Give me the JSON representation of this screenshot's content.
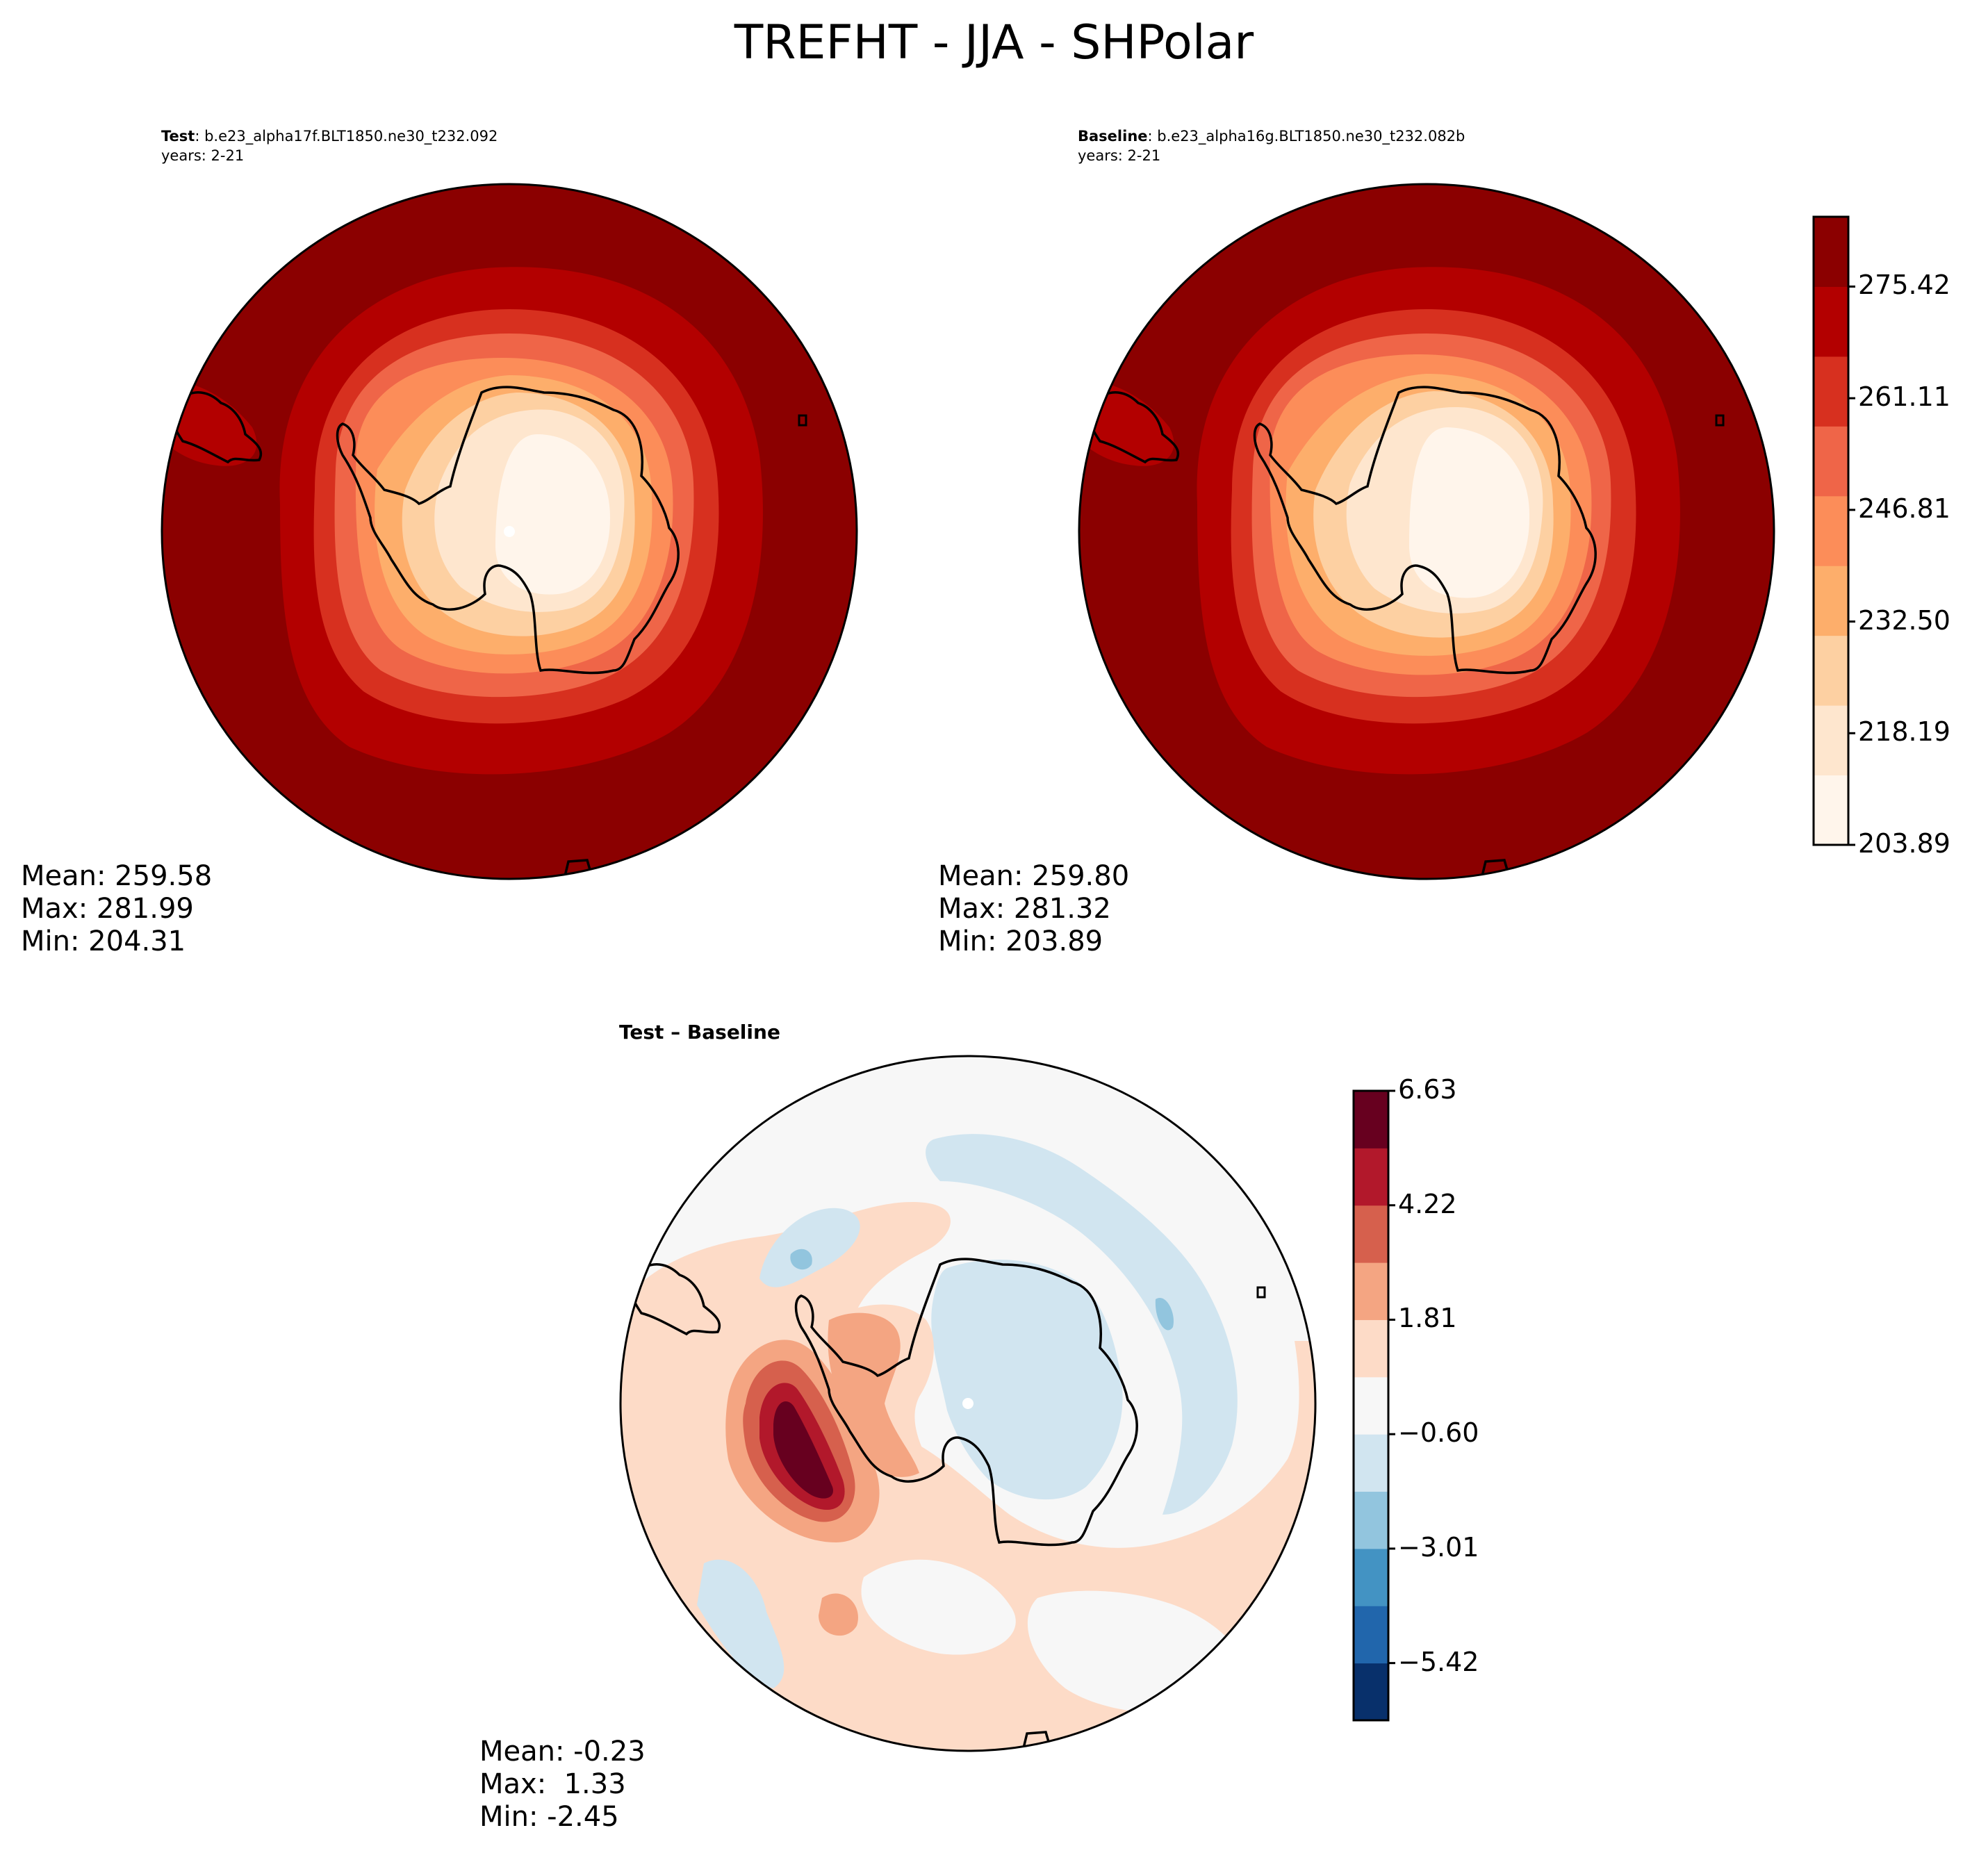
{
  "figure": {
    "suptitle": "TREFHT - JJA - SHPolar"
  },
  "panels": {
    "test": {
      "label": "Test",
      "case": ": b.e23_alpha17f.BLT1850.ne30_t232.092",
      "years": "years: 2-21",
      "stats": {
        "mean": "Mean: 259.58",
        "max": "Max: 281.99",
        "min": "Min: 204.31"
      }
    },
    "baseline": {
      "label": "Baseline",
      "case": ": b.e23_alpha16g.BLT1850.ne30_t232.082b",
      "years": "years: 2-21",
      "stats": {
        "mean": "Mean: 259.80",
        "max": "Max: 281.32",
        "min": "Min: 203.89"
      }
    },
    "diff": {
      "title": "Test – Baseline",
      "stats": {
        "mean": "Mean: -0.23",
        "max": "Max:  1.33",
        "min": "Min: -2.45"
      }
    }
  },
  "colorbars": {
    "main": {
      "ticks": [
        "275.42",
        "261.11",
        "246.81",
        "232.50",
        "218.19",
        "203.89"
      ],
      "colors_bottom_to_top": [
        "#fff5eb",
        "#fee6ce",
        "#fdd0a2",
        "#fdae6b",
        "#fc8d59",
        "#ef6548",
        "#d7301f",
        "#b30000",
        "#8b0000"
      ]
    },
    "diff": {
      "ticks": [
        "6.63",
        "4.22",
        "1.81",
        "−0.60",
        "−3.01",
        "−5.42"
      ],
      "colors_bottom_to_top": [
        "#08306b",
        "#2166ac",
        "#4393c3",
        "#92c5de",
        "#d1e5f0",
        "#f7f7f7",
        "#fddbc7",
        "#f4a582",
        "#d6604d",
        "#b2182b",
        "#67001f"
      ]
    }
  },
  "chart_data": {
    "type": "heatmap",
    "projection": "south-polar stereographic",
    "variable": "TREFHT",
    "season": "JJA",
    "region": "SHPolar",
    "panels": [
      {
        "name": "Test",
        "mean": 259.58,
        "max": 281.99,
        "min": 204.31,
        "range": [
          203.89,
          281.99
        ]
      },
      {
        "name": "Baseline",
        "mean": 259.8,
        "max": 281.32,
        "min": 203.89,
        "range": [
          203.89,
          281.32
        ]
      },
      {
        "name": "Test – Baseline",
        "mean": -0.23,
        "max": 1.33,
        "min": -2.45
      }
    ],
    "colorbar_main_ticks": [
      203.89,
      218.19,
      232.5,
      246.81,
      261.11,
      275.42
    ],
    "colorbar_diff_ticks": [
      -5.42,
      -3.01,
      -0.6,
      1.81,
      4.22,
      6.63
    ]
  }
}
